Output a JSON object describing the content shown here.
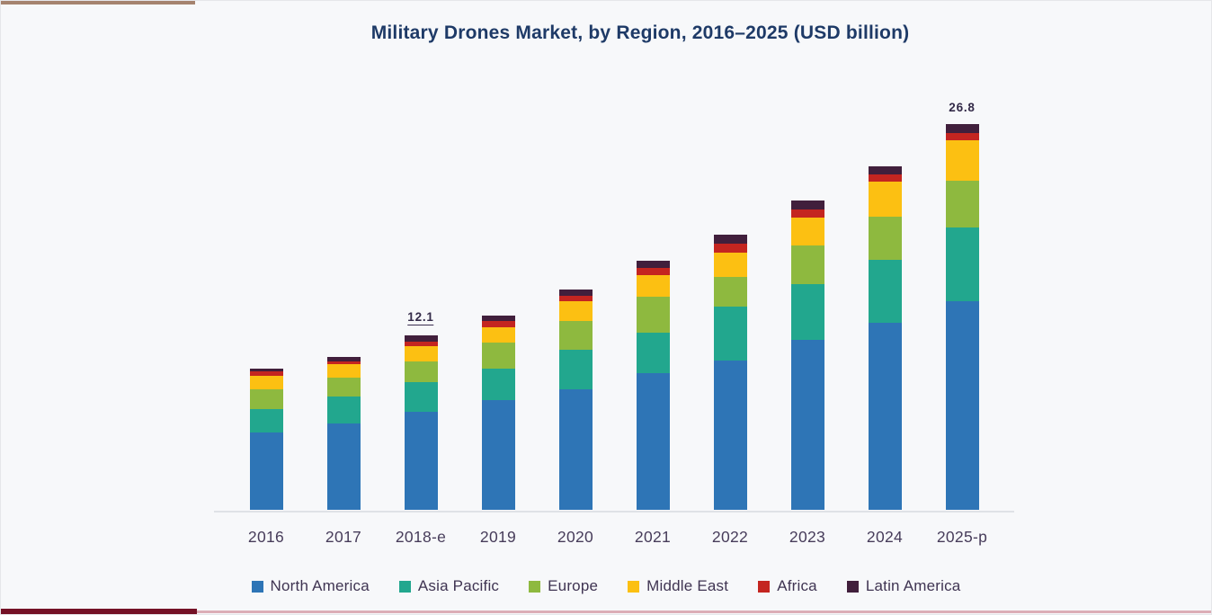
{
  "page": {
    "title": "Military Drones Market, by Region, 2016–2025 (USD billion)"
  },
  "chart_data": {
    "type": "bar",
    "stacked": true,
    "title": "Military Drones Market, by Region, 2016–2025 (USD billion)",
    "unit": "USD billion",
    "xlabel": "",
    "ylabel": "",
    "ylim": [
      0,
      28
    ],
    "grid": false,
    "legend_position": "bottom",
    "categories": [
      "2016",
      "2017",
      "2018-e",
      "2019",
      "2020",
      "2021",
      "2022",
      "2023",
      "2024",
      "2025-p"
    ],
    "series": [
      {
        "name": "North America",
        "color": "#2E75B6",
        "values": [
          5.4,
          6.0,
          6.8,
          7.6,
          8.4,
          9.5,
          10.4,
          11.8,
          13.0,
          14.5
        ]
      },
      {
        "name": "Asia Pacific",
        "color": "#22A78E",
        "values": [
          1.6,
          1.9,
          2.1,
          2.2,
          2.7,
          2.8,
          3.7,
          3.9,
          4.4,
          5.1
        ]
      },
      {
        "name": "Europe",
        "color": "#8EB93F",
        "values": [
          1.4,
          1.3,
          1.4,
          1.8,
          2.0,
          2.5,
          2.1,
          2.7,
          3.0,
          3.3
        ]
      },
      {
        "name": "Middle East",
        "color": "#FCC012",
        "values": [
          0.9,
          0.9,
          1.1,
          1.1,
          1.4,
          1.5,
          1.7,
          1.9,
          2.4,
          2.8
        ]
      },
      {
        "name": "Africa",
        "color": "#C42520",
        "values": [
          0.3,
          0.2,
          0.3,
          0.4,
          0.4,
          0.5,
          0.6,
          0.6,
          0.5,
          0.5
        ]
      },
      {
        "name": "Latin America",
        "color": "#411F3C",
        "values": [
          0.2,
          0.3,
          0.4,
          0.4,
          0.4,
          0.5,
          0.6,
          0.6,
          0.6,
          0.6
        ]
      }
    ],
    "totals": [
      9.8,
      10.6,
      12.1,
      13.5,
      15.3,
      17.3,
      19.1,
      21.5,
      23.9,
      26.8
    ],
    "annotations": [
      {
        "category": "2018-e",
        "text": "12.1",
        "underline": true
      },
      {
        "category": "2025-p",
        "text": "26.8",
        "underline": false
      }
    ]
  }
}
